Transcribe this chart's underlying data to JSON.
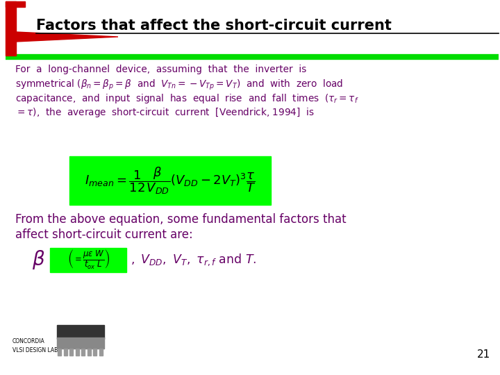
{
  "title": "Factors that affect the short-circuit current",
  "bg_color": "#ffffff",
  "title_color": "#000000",
  "header_bar_color": "#cc0000",
  "green_line_color": "#00dd00",
  "body_text_color": "#660066",
  "formula_bg": "#00ff00",
  "page_number": "21",
  "concordia_text": "CONCORDIA\nVLSI DESIGN LAB",
  "para1_lines": [
    "For  a  long-channel  device,  assuming  that  the  inverter  is",
    "symmetrical ($\\beta_n = \\beta_p = \\beta$  and  $V_{Tn} = -V_{Tp} = V_T$)  and  with  zero  load",
    "capacitance,  and  input  signal  has  equal  rise  and  fall  times  ($\\tau_r = \\tau_f$",
    "$= \\tau$),  the  average  short-circuit  current  [Veendrick, 1994]  is"
  ],
  "para2_lines": [
    "From the above equation, some fundamental factors that",
    "affect short-circuit current are:"
  ],
  "formula": "$I_{mean} = \\dfrac{1}{12}\\dfrac{\\beta}{V_{DD}}(V_{DD} - 2V_T)^3\\dfrac{\\tau}{T}$",
  "beta_formula": "$\\left(=\\dfrac{\\mu\\varepsilon\\ W}{t_{ox}\\ L}\\right)$",
  "after_beta": "$,\\ V_{DD},\\ V_T,\\ \\tau_{r,f}\\ \\mathrm{and}\\ T.$"
}
